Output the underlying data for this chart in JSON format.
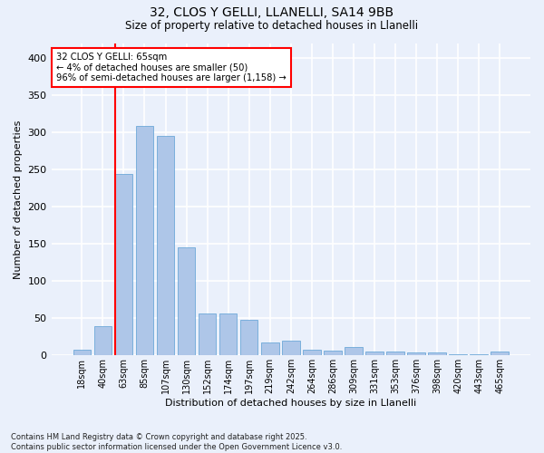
{
  "title1": "32, CLOS Y GELLI, LLANELLI, SA14 9BB",
  "title2": "Size of property relative to detached houses in Llanelli",
  "xlabel": "Distribution of detached houses by size in Llanelli",
  "ylabel": "Number of detached properties",
  "bar_labels": [
    "18sqm",
    "40sqm",
    "63sqm",
    "85sqm",
    "107sqm",
    "130sqm",
    "152sqm",
    "174sqm",
    "197sqm",
    "219sqm",
    "242sqm",
    "264sqm",
    "286sqm",
    "309sqm",
    "331sqm",
    "353sqm",
    "376sqm",
    "398sqm",
    "420sqm",
    "443sqm",
    "465sqm"
  ],
  "bar_values": [
    8,
    39,
    244,
    308,
    295,
    145,
    56,
    56,
    48,
    17,
    20,
    8,
    7,
    11,
    5,
    5,
    4,
    4,
    1,
    1,
    5
  ],
  "bar_color": "#aec6e8",
  "bar_edgecolor": "#5a9fd4",
  "annotation_text": "32 CLOS Y GELLI: 65sqm\n← 4% of detached houses are smaller (50)\n96% of semi-detached houses are larger (1,158) →",
  "annotation_box_color": "white",
  "annotation_box_edgecolor": "red",
  "vline_color": "red",
  "ylim": [
    0,
    420
  ],
  "yticks": [
    0,
    50,
    100,
    150,
    200,
    250,
    300,
    350,
    400
  ],
  "background_color": "#eaf0fb",
  "grid_color": "white",
  "footer": "Contains HM Land Registry data © Crown copyright and database right 2025.\nContains public sector information licensed under the Open Government Licence v3.0."
}
